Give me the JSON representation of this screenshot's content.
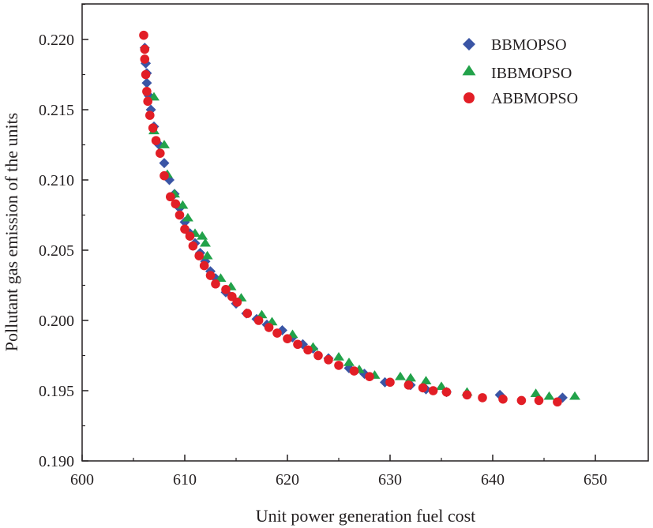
{
  "chart_data": {
    "type": "scatter",
    "title": "",
    "xlabel": "Unit power generation fuel cost",
    "ylabel": "Pollutant gas emission of the units",
    "xlim": [
      600,
      655
    ],
    "ylim": [
      0.19,
      0.2225
    ],
    "xticks": [
      600,
      610,
      620,
      630,
      640,
      650
    ],
    "xtick_labels": [
      "600",
      "610",
      "620",
      "630",
      "640",
      "650"
    ],
    "yticks": [
      0.19,
      0.195,
      0.2,
      0.205,
      0.21,
      0.215,
      0.22
    ],
    "ytick_labels": [
      "0.190",
      "0.195",
      "0.200",
      "0.205",
      "0.210",
      "0.215",
      "0.220"
    ],
    "grid": false,
    "legend_position": "top-right",
    "series": [
      {
        "name": "BBMOPSO",
        "marker": "diamond",
        "color": "#3a55a5",
        "points": [
          [
            606.1,
            0.2194
          ],
          [
            606.2,
            0.2183
          ],
          [
            606.3,
            0.2176
          ],
          [
            606.3,
            0.2169
          ],
          [
            606.5,
            0.216
          ],
          [
            606.7,
            0.215
          ],
          [
            607.0,
            0.2138
          ],
          [
            607.5,
            0.2125
          ],
          [
            608.0,
            0.2112
          ],
          [
            608.5,
            0.21
          ],
          [
            609.0,
            0.209
          ],
          [
            609.5,
            0.208
          ],
          [
            610.0,
            0.207
          ],
          [
            610.5,
            0.2062
          ],
          [
            611.0,
            0.2055
          ],
          [
            611.5,
            0.2048
          ],
          [
            612.0,
            0.2042
          ],
          [
            612.5,
            0.2035
          ],
          [
            613.0,
            0.203
          ],
          [
            614.0,
            0.202
          ],
          [
            615.0,
            0.2012
          ],
          [
            616.0,
            0.2005
          ],
          [
            617.0,
            0.2001
          ],
          [
            618.0,
            0.1997
          ],
          [
            619.5,
            0.1993
          ],
          [
            620.5,
            0.1988
          ],
          [
            621.5,
            0.1983
          ],
          [
            622.5,
            0.198
          ],
          [
            624.0,
            0.1973
          ],
          [
            626.0,
            0.1966
          ],
          [
            627.5,
            0.1962
          ],
          [
            629.5,
            0.1956
          ],
          [
            632.0,
            0.1954
          ],
          [
            633.5,
            0.1951
          ],
          [
            635.5,
            0.1949
          ],
          [
            640.7,
            0.1947
          ],
          [
            646.8,
            0.1945
          ]
        ]
      },
      {
        "name": "IBBMOPSO",
        "marker": "triangle",
        "color": "#22a24a",
        "points": [
          [
            607.0,
            0.2159
          ],
          [
            607.0,
            0.2135
          ],
          [
            608.0,
            0.2125
          ],
          [
            608.3,
            0.2104
          ],
          [
            609.0,
            0.209
          ],
          [
            609.8,
            0.2082
          ],
          [
            610.3,
            0.2073
          ],
          [
            611.0,
            0.2062
          ],
          [
            611.7,
            0.206
          ],
          [
            612.0,
            0.2055
          ],
          [
            612.2,
            0.2046
          ],
          [
            613.5,
            0.203
          ],
          [
            614.5,
            0.2024
          ],
          [
            615.5,
            0.2016
          ],
          [
            617.5,
            0.2004
          ],
          [
            618.5,
            0.1999
          ],
          [
            620.5,
            0.199
          ],
          [
            622.5,
            0.1981
          ],
          [
            625.0,
            0.1974
          ],
          [
            626.0,
            0.197
          ],
          [
            627.0,
            0.1965
          ],
          [
            628.5,
            0.1961
          ],
          [
            631.0,
            0.196
          ],
          [
            632.0,
            0.1959
          ],
          [
            633.5,
            0.1957
          ],
          [
            635.0,
            0.1953
          ],
          [
            637.5,
            0.1949
          ],
          [
            644.2,
            0.1948
          ],
          [
            645.5,
            0.1946
          ],
          [
            648.0,
            0.1946
          ]
        ]
      },
      {
        "name": "ABBMOPSO",
        "marker": "circle",
        "color": "#e21e26",
        "points": [
          [
            606.0,
            0.2203
          ],
          [
            606.1,
            0.2193
          ],
          [
            606.1,
            0.2186
          ],
          [
            606.2,
            0.2175
          ],
          [
            606.3,
            0.2163
          ],
          [
            606.4,
            0.2156
          ],
          [
            606.6,
            0.2146
          ],
          [
            606.9,
            0.2137
          ],
          [
            607.2,
            0.2128
          ],
          [
            607.6,
            0.2119
          ],
          [
            608.0,
            0.2103
          ],
          [
            608.6,
            0.2088
          ],
          [
            609.1,
            0.2083
          ],
          [
            609.5,
            0.2075
          ],
          [
            610.0,
            0.2065
          ],
          [
            610.5,
            0.206
          ],
          [
            610.8,
            0.2053
          ],
          [
            611.4,
            0.2046
          ],
          [
            611.9,
            0.2039
          ],
          [
            612.5,
            0.2032
          ],
          [
            613.0,
            0.2026
          ],
          [
            614.0,
            0.2022
          ],
          [
            614.6,
            0.2017
          ],
          [
            615.1,
            0.2013
          ],
          [
            616.1,
            0.2005
          ],
          [
            617.2,
            0.2
          ],
          [
            618.2,
            0.1995
          ],
          [
            619.0,
            0.1991
          ],
          [
            620.0,
            0.1987
          ],
          [
            621.0,
            0.1983
          ],
          [
            622.0,
            0.1979
          ],
          [
            623.0,
            0.1975
          ],
          [
            624.0,
            0.1972
          ],
          [
            625.0,
            0.1968
          ],
          [
            626.5,
            0.1964
          ],
          [
            628.0,
            0.196
          ],
          [
            630.0,
            0.1956
          ],
          [
            631.8,
            0.1954
          ],
          [
            633.2,
            0.1952
          ],
          [
            634.2,
            0.195
          ],
          [
            635.5,
            0.1949
          ],
          [
            637.5,
            0.1947
          ],
          [
            639.0,
            0.1945
          ],
          [
            641.0,
            0.1944
          ],
          [
            642.8,
            0.1943
          ],
          [
            644.5,
            0.1943
          ],
          [
            646.3,
            0.1942
          ]
        ]
      }
    ]
  }
}
